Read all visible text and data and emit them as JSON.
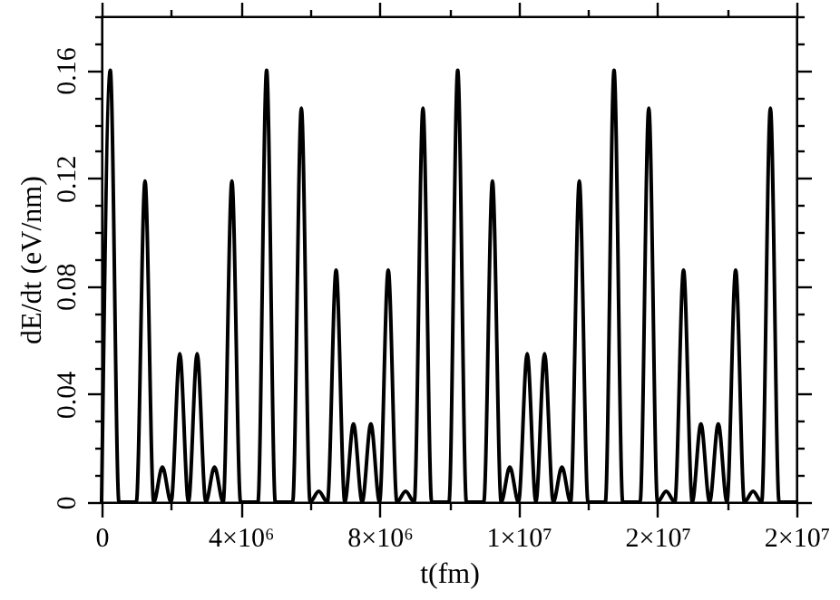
{
  "chart_data": {
    "type": "line",
    "xlabel": "t(fm)",
    "ylabel": "dE/dt (eV/nm)",
    "x": [
      0,
      250000,
      500000,
      750000,
      1000000,
      1250000,
      1500000,
      1750000,
      2000000,
      2250000,
      2500000,
      2750000,
      3000000,
      3250000,
      3500000,
      3750000,
      4000000,
      4250000,
      4500000,
      4750000,
      5000000,
      5250000,
      5500000,
      5750000,
      6000000,
      6250000,
      6500000,
      6750000,
      7000000,
      7250000,
      7500000,
      7750000,
      8000000,
      8250000,
      8500000,
      8750000,
      9000000,
      9250000,
      9500000,
      9750000,
      10000000,
      10250000,
      10500000,
      10750000,
      11000000,
      11250000,
      11500000,
      11750000,
      12000000,
      12250000,
      12500000,
      12750000,
      13000000,
      13250000,
      13500000,
      13750000,
      14000000,
      14250000,
      14500000,
      14750000,
      15000000,
      15250000,
      15500000,
      15750000,
      16000000,
      16250000,
      16500000,
      16750000,
      17000000,
      17250000,
      17500000,
      17750000,
      18000000,
      18250000,
      18500000,
      18750000,
      19000000,
      19250000,
      19500000,
      19750000,
      20000000
    ],
    "series": [
      {
        "color": "#000000",
        "values": [
          0,
          0.16,
          0,
          0,
          0,
          0.119,
          0,
          0.013,
          0,
          0.055,
          0,
          0.055,
          0,
          0.013,
          0,
          0.119,
          0,
          0,
          0,
          0.16,
          0,
          0,
          0,
          0.146,
          0,
          0.004,
          0,
          0.086,
          0,
          0.029,
          0,
          0.029,
          0,
          0.086,
          0,
          0.004,
          0,
          0.146,
          0,
          0,
          0,
          0.16,
          0,
          0,
          0,
          0.119,
          0,
          0.013,
          0,
          0.055,
          0,
          0.055,
          0,
          0.013,
          0,
          0.119,
          0,
          0,
          0,
          0.16,
          0,
          0,
          0,
          0.146,
          0,
          0.004,
          0,
          0.086,
          0,
          0.029,
          0,
          0.029,
          0,
          0.086,
          0,
          0.004,
          0,
          0.146,
          0,
          0,
          0
        ]
      }
    ],
    "xlim": [
      0,
      20000000
    ],
    "ylim": [
      0,
      0.18
    ],
    "xticks": [
      0,
      {
        "value": 2000000,
        "label": null
      },
      {
        "value": 4000000,
        "label": "4×10⁶"
      },
      {
        "value": 6000000,
        "label": null
      },
      {
        "value": 8000000,
        "label": "8×10⁶"
      },
      {
        "value": 10000000,
        "label": null
      },
      {
        "value": 12000000,
        "label": "1×10⁷"
      },
      {
        "value": 14000000,
        "label": null
      },
      {
        "value": 16000000,
        "label": "2×10⁷"
      },
      {
        "value": 18000000,
        "label": null
      },
      {
        "value": 20000000,
        "label": "2×10⁷"
      }
    ],
    "yticks": [
      0,
      {
        "value": 0.01,
        "label": null
      },
      {
        "value": 0.02,
        "label": null
      },
      {
        "value": 0.03,
        "label": null
      },
      0.04,
      {
        "value": 0.05,
        "label": null
      },
      {
        "value": 0.06,
        "label": null
      },
      {
        "value": 0.07,
        "label": null
      },
      0.08,
      {
        "value": 0.09,
        "label": null
      },
      {
        "value": 0.1,
        "label": null
      },
      {
        "value": 0.11,
        "label": null
      },
      0.12,
      {
        "value": 0.13,
        "label": null
      },
      {
        "value": 0.14,
        "label": null
      },
      {
        "value": 0.15,
        "label": null
      },
      0.16,
      {
        "value": 0.17,
        "label": null
      },
      {
        "value": 0.18,
        "label": null
      }
    ],
    "grid": false
  }
}
